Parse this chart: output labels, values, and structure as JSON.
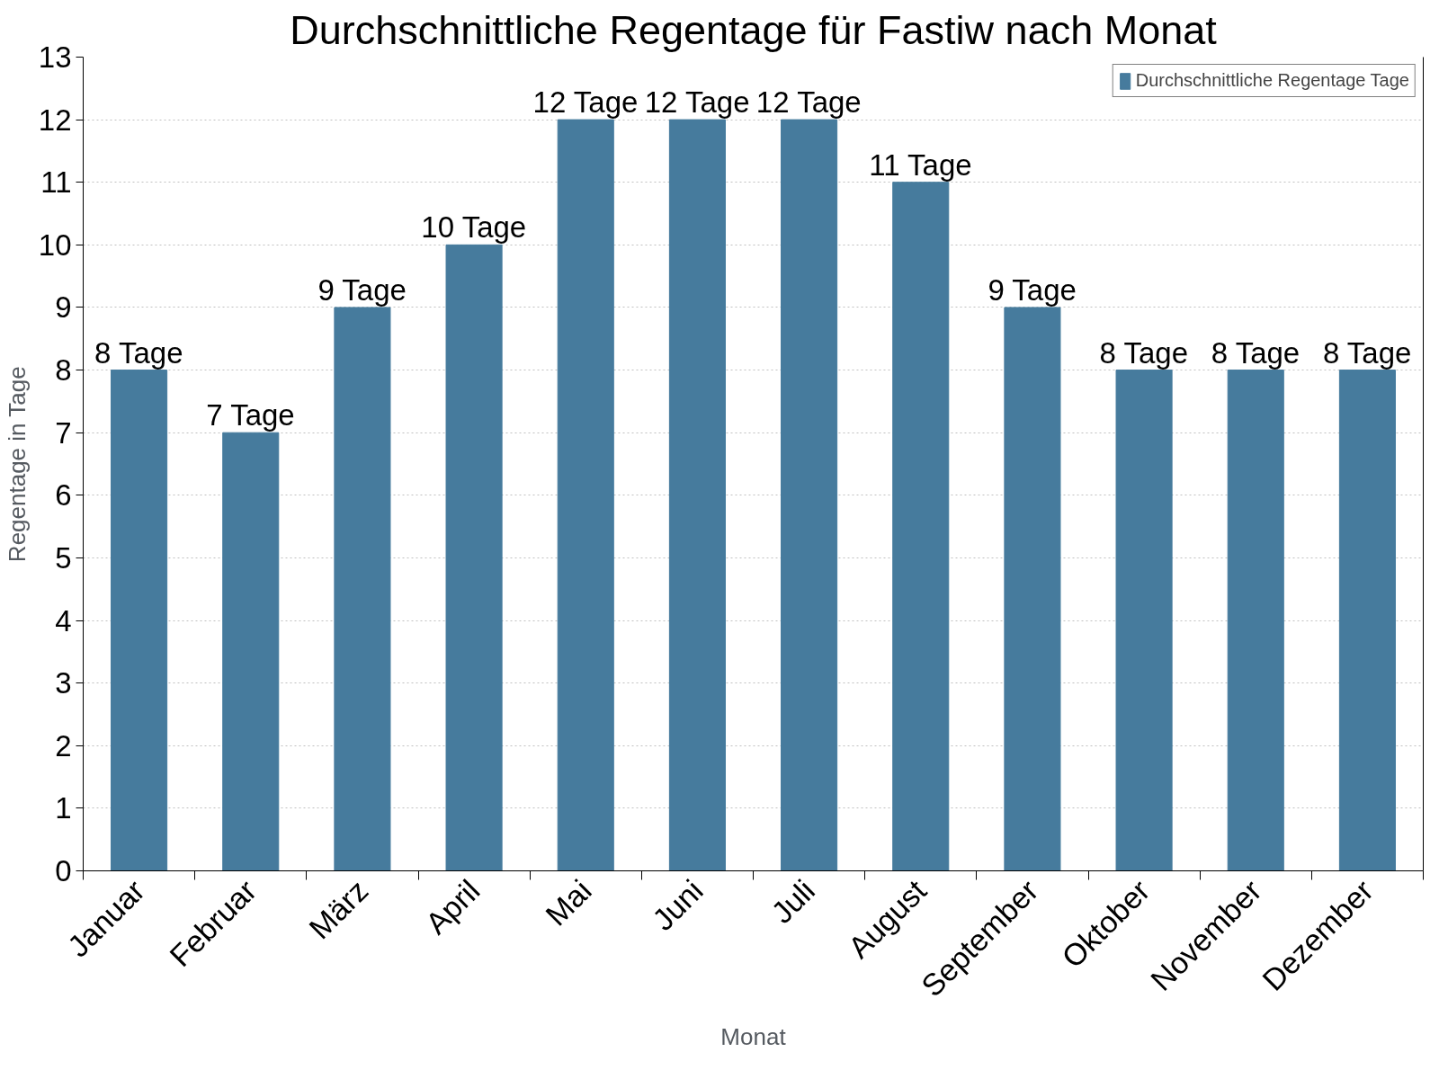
{
  "chart_data": {
    "type": "bar",
    "title": "Durchschnittliche Regentage für Fastiw nach Monat",
    "xlabel": "Monat",
    "ylabel": "Regentage in Tage",
    "categories": [
      "Januar",
      "Februar",
      "März",
      "April",
      "Mai",
      "Juni",
      "Juli",
      "August",
      "September",
      "Oktober",
      "November",
      "Dezember"
    ],
    "series": [
      {
        "name": "Durchschnittliche Regentage Tage",
        "color": "#467b9d",
        "values": [
          8,
          7,
          9,
          10,
          12,
          12,
          12,
          11,
          9,
          8,
          8,
          8
        ],
        "value_labels": [
          "8 Tage",
          "7 Tage",
          "9 Tage",
          "10 Tage",
          "12 Tage",
          "12 Tage",
          "12 Tage",
          "11 Tage",
          "9 Tage",
          "8 Tage",
          "8 Tage",
          "8 Tage"
        ]
      }
    ],
    "ylim": [
      0,
      13
    ],
    "yticks": [
      0,
      1,
      2,
      3,
      4,
      5,
      6,
      7,
      8,
      9,
      10,
      11,
      12,
      13
    ],
    "grid": "y",
    "legend": "top right"
  }
}
